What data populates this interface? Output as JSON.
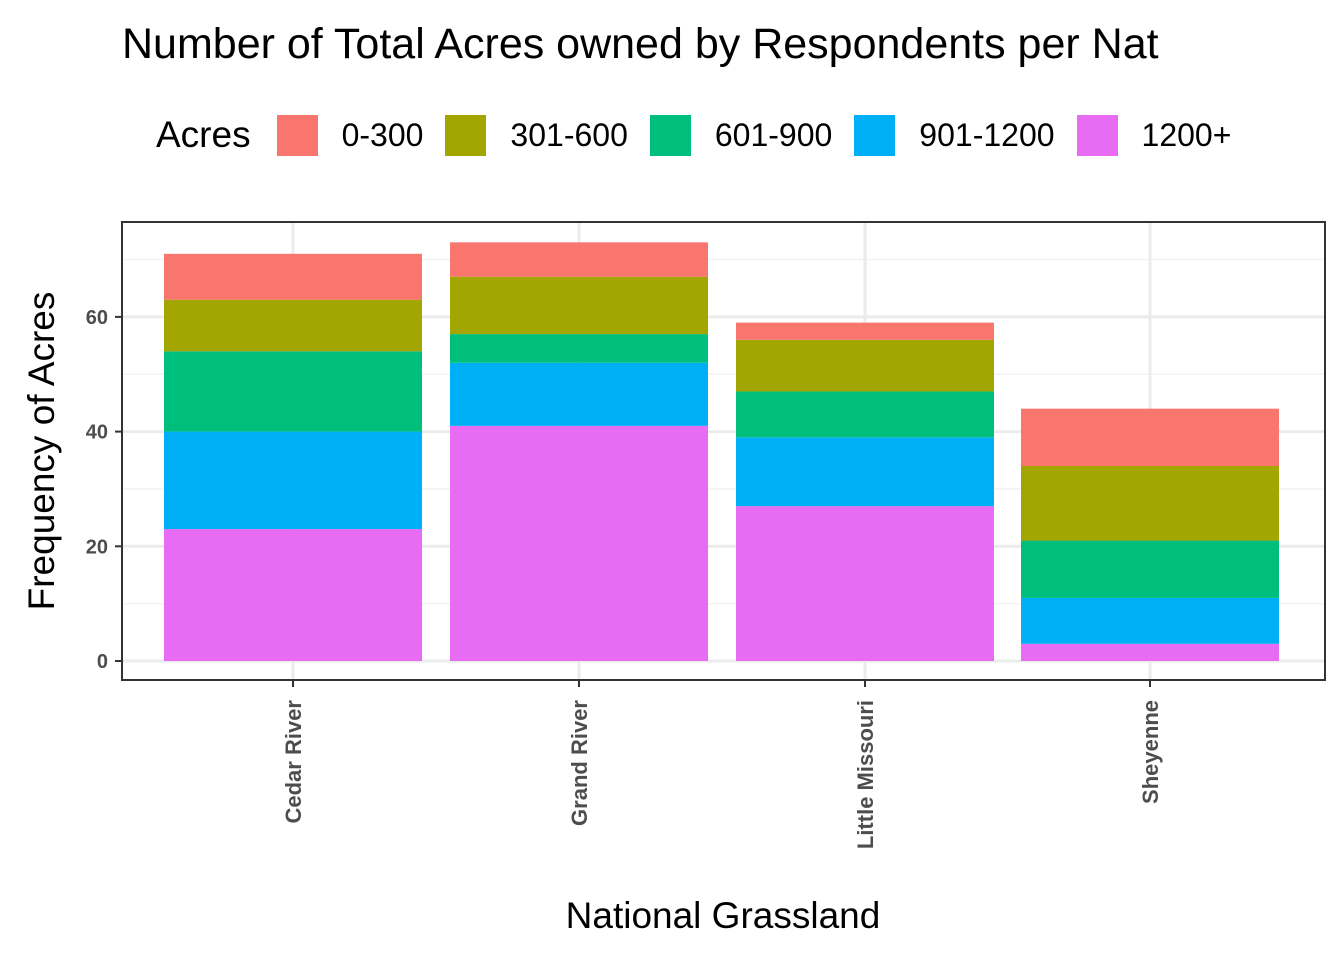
{
  "chart_data": {
    "type": "bar",
    "stacked": true,
    "title": "Number of Total Acres owned by Respondents per Nat",
    "xlabel": "National Grassland",
    "ylabel": "Frequency of Acres",
    "categories": [
      "Cedar River",
      "Grand River",
      "Little Missouri",
      "Sheyenne"
    ],
    "ylim": [
      0,
      76
    ],
    "yticks": [
      0,
      20,
      40,
      60
    ],
    "grid": true,
    "legend": {
      "title": "Acres",
      "position": "top"
    },
    "series": [
      {
        "name": "1200+",
        "color": "#E76BF3",
        "values": [
          23,
          41,
          27,
          3
        ]
      },
      {
        "name": "901-1200",
        "color": "#00B0F6",
        "values": [
          17,
          11,
          12,
          8
        ]
      },
      {
        "name": "601-900",
        "color": "#00BF7D",
        "values": [
          14,
          5,
          8,
          10
        ]
      },
      {
        "name": "301-600",
        "color": "#A3A500",
        "values": [
          9,
          10,
          9,
          13
        ]
      },
      {
        "name": "0-300",
        "color": "#F8766D",
        "values": [
          8,
          6,
          3,
          10
        ]
      }
    ],
    "legend_order": [
      "0-300",
      "301-600",
      "601-900",
      "901-1200",
      "1200+"
    ]
  }
}
